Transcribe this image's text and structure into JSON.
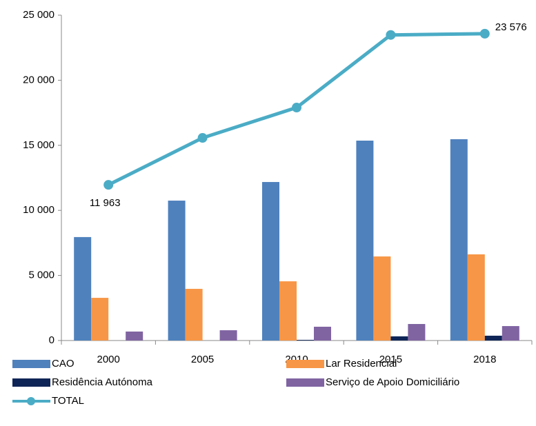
{
  "chart_data": {
    "type": "bar-line",
    "categories": [
      "2000",
      "2005",
      "2010",
      "2015",
      "2018"
    ],
    "series": [
      {
        "name": "CAO",
        "color": "#4f81bd",
        "type": "bar",
        "values": [
          7950,
          10750,
          12180,
          15360,
          15470
        ]
      },
      {
        "name": "Lar Residencial",
        "color": "#f79646",
        "type": "bar",
        "values": [
          3280,
          3970,
          4550,
          6460,
          6620
        ]
      },
      {
        "name": "Residência Autónoma",
        "color": "#0f2557",
        "type": "bar",
        "values": [
          0,
          0,
          50,
          320,
          370
        ]
      },
      {
        "name": "Serviço de Apoio Domiciliário",
        "color": "#8064a2",
        "type": "bar",
        "values": [
          690,
          790,
          1060,
          1270,
          1110
        ]
      },
      {
        "name": "TOTAL",
        "color": "#4bacc6",
        "type": "line",
        "values": [
          11963,
          15570,
          17900,
          23480,
          23576
        ],
        "value_labels": [
          "11 963",
          null,
          null,
          null,
          "23 576"
        ]
      }
    ],
    "ylim": [
      0,
      25000
    ],
    "yticks": [
      0,
      {
        "value": 5000,
        "label": "5 000"
      },
      {
        "value": 10000,
        "label": "10 000"
      },
      {
        "value": 15000,
        "label": "15 000"
      },
      {
        "value": 20000,
        "label": "20 000"
      },
      {
        "value": 25000,
        "label": "25 000"
      }
    ]
  }
}
